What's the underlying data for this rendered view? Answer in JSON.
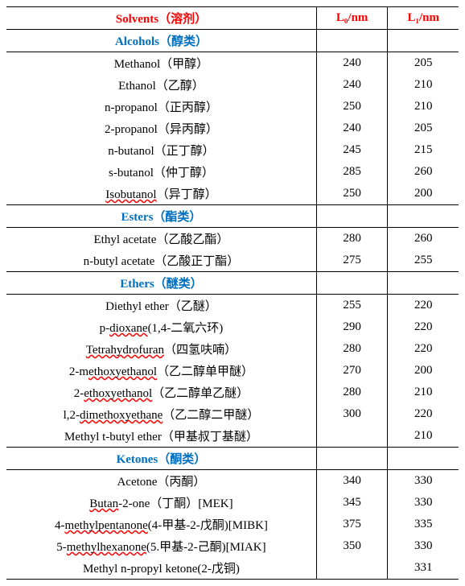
{
  "headers": {
    "solvent": "Solvents（溶剂）",
    "l0": "L₀/nm",
    "l1": "L₁/nm"
  },
  "sections": [
    {
      "category": "Alcohols（醇类）",
      "rows": [
        {
          "name": "Methanol（甲醇）",
          "l0": "240",
          "l1": "205"
        },
        {
          "name": "Ethanol（乙醇）",
          "l0": "240",
          "l1": "210"
        },
        {
          "name": "n-propanol（正丙醇）",
          "l0": "250",
          "l1": "210"
        },
        {
          "name": "2-propanol（异丙醇）",
          "l0": "240",
          "l1": "205"
        },
        {
          "name": "n-butanol（正丁醇）",
          "l0": "245",
          "l1": "215"
        },
        {
          "name": "s-butanol（仲丁醇）",
          "l0": "285",
          "l1": "260"
        },
        {
          "name": "Isobutanol（异丁醇）",
          "l0": "250",
          "l1": "200"
        }
      ]
    },
    {
      "category": "Esters（酯类）",
      "rows": [
        {
          "name": "Ethyl acetate（乙酸乙酯）",
          "l0": "280",
          "l1": "260"
        },
        {
          "name": "n-butyl acetate（乙酸正丁酯）",
          "l0": "275",
          "l1": "255"
        }
      ]
    },
    {
      "category": "Ethers（醚类）",
      "rows": [
        {
          "name": "Diethyl ether（乙醚）",
          "l0": "255",
          "l1": "220"
        },
        {
          "name": "p-dioxane(1,4-二氧六环)",
          "l0": "290",
          "l1": "220"
        },
        {
          "name": "Tetrahydrofuran（四氢呋喃）",
          "l0": "280",
          "l1": "220"
        },
        {
          "name": "2-methoxyethanol（乙二醇单甲醚）",
          "l0": "270",
          "l1": "200"
        },
        {
          "name": "2-ethoxyethanol（乙二醇单乙醚）",
          "l0": "280",
          "l1": "210"
        },
        {
          "name": "l,2-dimethoxyethane（乙二醇二甲醚）",
          "l0": "300",
          "l1": "220"
        },
        {
          "name": "Methyl t-butyl ether（甲基叔丁基醚）",
          "l0": "",
          "l1": "210"
        }
      ]
    },
    {
      "category": "Ketones（酮类）",
      "rows": [
        {
          "name": "Acetone（丙酮）",
          "l0": "340",
          "l1": "330"
        },
        {
          "name": "Butan-2-one（丁酮）[MEK]",
          "l0": "345",
          "l1": "330"
        },
        {
          "name": "4-methylpentanone(4-甲基-2-戊酮)[MIBK]",
          "l0": "375",
          "l1": "335"
        },
        {
          "name": "5-methylhexanone(5.甲基-2-己酮)[MIAK]",
          "l0": "350",
          "l1": "330"
        },
        {
          "name": "Methyl n-propyl ketone(2-戊铜)",
          "l0": "",
          "l1": "331"
        }
      ]
    }
  ]
}
